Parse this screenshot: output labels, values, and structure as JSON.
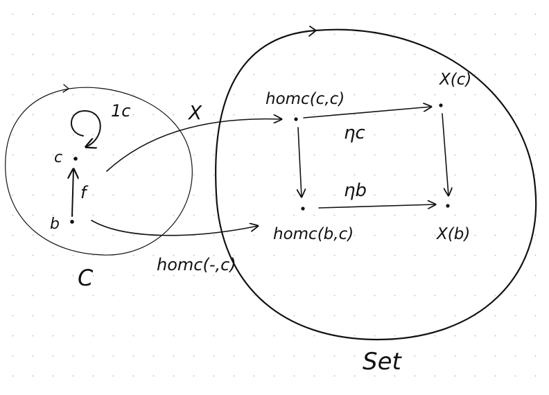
{
  "category_c": {
    "name": "C",
    "objects": [
      "c",
      "b"
    ],
    "identity_label": "1c",
    "morphism_label": "f"
  },
  "category_set": {
    "name": "Set",
    "objects": [
      "homc(c,c)",
      "X(c)",
      "homc(b,c)",
      "X(b)"
    ],
    "components": [
      "ηc",
      "ηb"
    ]
  },
  "functors": {
    "presheaf": "X",
    "representable": "homc(-,c)"
  }
}
